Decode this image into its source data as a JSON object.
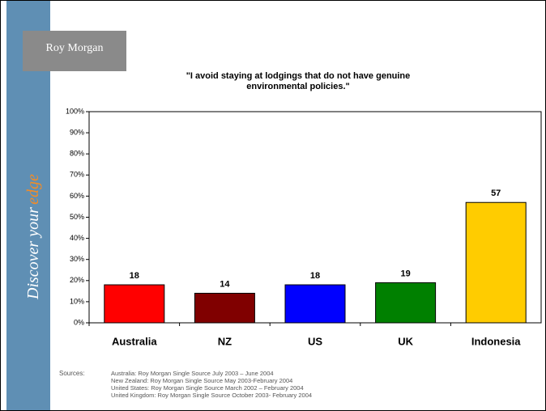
{
  "logo": "Roy Morgan",
  "sidebar": {
    "text": "Discover your",
    "highlight": "edge"
  },
  "chart_data": {
    "type": "bar",
    "title": "\"I avoid staying at lodgings that do not have genuine environmental policies.\"",
    "categories": [
      "Australia",
      "NZ",
      "US",
      "UK",
      "Indonesia"
    ],
    "values": [
      18,
      14,
      18,
      19,
      57
    ],
    "colors": [
      "#ff0000",
      "#800000",
      "#0000ff",
      "#008000",
      "#ffcc00"
    ],
    "ylim": [
      0,
      100
    ],
    "yticks": [
      {
        "value": 0,
        "label": "0%"
      },
      {
        "value": 10,
        "label": "10%"
      },
      {
        "value": 20,
        "label": "20%"
      },
      {
        "value": 30,
        "label": "30%"
      },
      {
        "value": 40,
        "label": "40%"
      },
      {
        "value": 50,
        "label": "50%"
      },
      {
        "value": 60,
        "label": "60%"
      },
      {
        "value": 70,
        "label": "70%"
      },
      {
        "value": 80,
        "label": "80%"
      },
      {
        "value": 90,
        "label": "90%"
      },
      {
        "value": 100,
        "label": "100%"
      }
    ]
  },
  "sources": {
    "label": "Sources:",
    "lines": [
      "Australia: Roy Morgan Single Source July 2003 – June 2004",
      "New Zealand: Roy Morgan Single Source May 2003-February 2004",
      "United States: Roy Morgan Single Source March 2002 – February 2004",
      "United Kingdom: Roy Morgan Single Source October 2003- February 2004"
    ]
  }
}
